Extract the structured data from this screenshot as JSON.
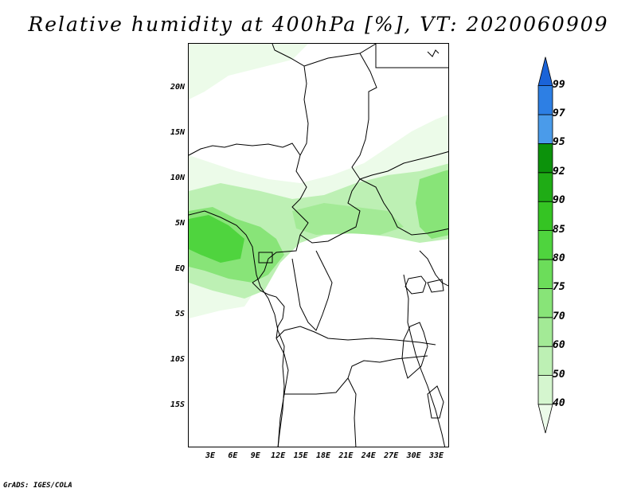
{
  "title": "Relative humidity at 400hPa [%], VT: 2020060909",
  "credit": "GrADS: IGES/COLA",
  "map": {
    "projection": "lat-lon",
    "lon_range": [
      0,
      35
    ],
    "lat_range": [
      -20,
      25
    ],
    "field": "relative humidity",
    "level": "400hPa",
    "units": "%",
    "lat_ticks": [
      "20N",
      "15N",
      "10N",
      "5N",
      "EQ",
      "5S",
      "10S",
      "15S"
    ],
    "lon_ticks": [
      "3E",
      "6E",
      "9E",
      "12E",
      "15E",
      "18E",
      "21E",
      "24E",
      "27E",
      "30E",
      "33E"
    ]
  },
  "colorbar": {
    "levels": [
      "40",
      "50",
      "60",
      "70",
      "75",
      "80",
      "85",
      "90",
      "92",
      "95",
      "97",
      "99"
    ],
    "colors": [
      "#ecfbe9",
      "#d5f6cf",
      "#bdf0b4",
      "#a3ea96",
      "#88e478",
      "#6cdd5a",
      "#4fd43e",
      "#35c423",
      "#1fac15",
      "#0c920b",
      "#4a9bea",
      "#2d7fe4",
      "#1a63d8"
    ]
  }
}
